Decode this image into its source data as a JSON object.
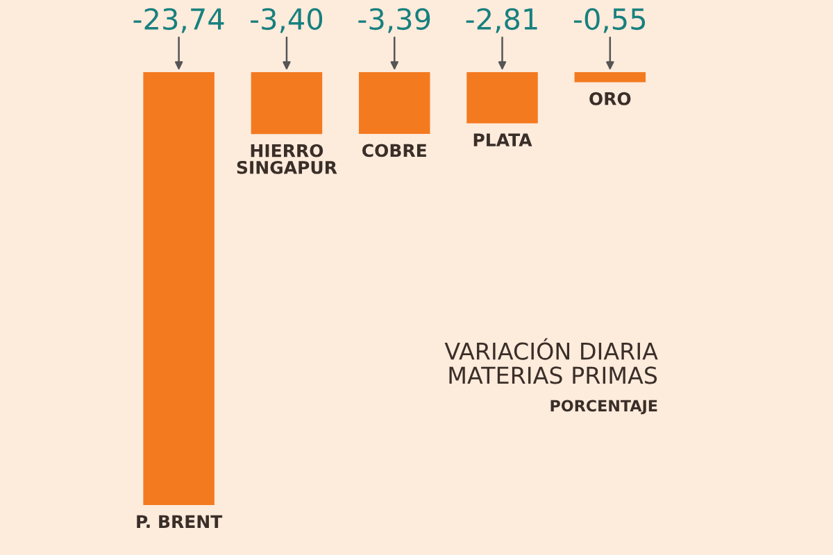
{
  "chart_data": {
    "type": "bar",
    "title": "VARIACIÓN DIARIA\nMATERIAS PRIMAS",
    "subtitle": "PORCENTAJE",
    "categories": [
      "P. BRENT",
      "HIERRO\nSINGAPUR",
      "COBRE",
      "PLATA",
      "ORO"
    ],
    "values": [
      -23.74,
      -3.4,
      -3.39,
      -2.81,
      -0.55
    ],
    "value_labels": [
      "-23,74",
      "-3,40",
      "-3,39",
      "-2,81",
      "-0,55"
    ],
    "color": "#f47a20"
  }
}
